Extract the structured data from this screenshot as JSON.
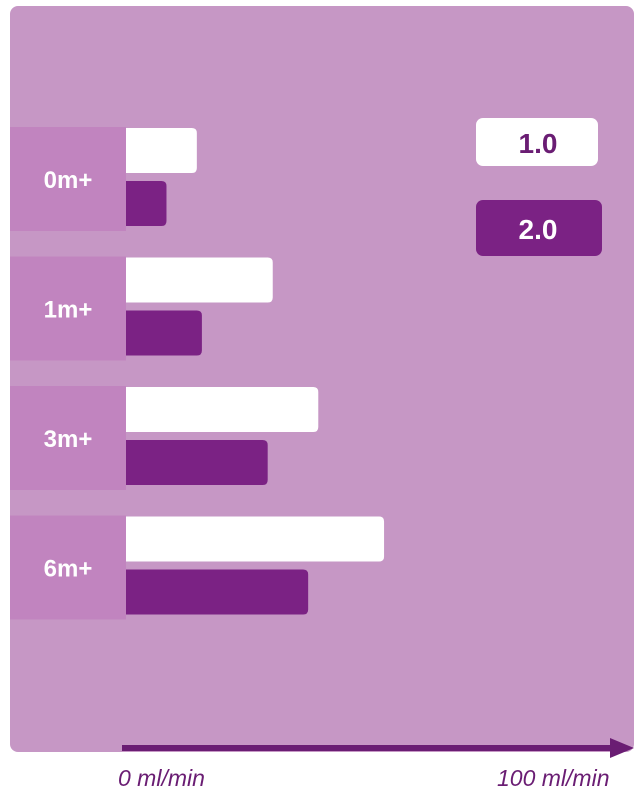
{
  "chart_data": {
    "type": "bar",
    "orientation": "horizontal",
    "categories": [
      "0m+",
      "1m+",
      "3m+",
      "6m+"
    ],
    "series": [
      {
        "name": "1.0",
        "values": [
          14,
          29,
          38,
          51
        ]
      },
      {
        "name": "2.0",
        "values": [
          8,
          15,
          28,
          36
        ]
      }
    ],
    "xlim": [
      0,
      100
    ],
    "x_tick_labels": [
      "0 ml/min",
      "100 ml/min"
    ],
    "legend_position": "top-right",
    "grid": false
  },
  "colors": {
    "panel": "#c697c5",
    "category_band": "#c184bf",
    "series_1": "#ffffff",
    "series_2": "#7b2284",
    "legend_1_text": "#6a1d73",
    "legend_2_text": "#ffffff",
    "axis": "#6a1d73"
  }
}
